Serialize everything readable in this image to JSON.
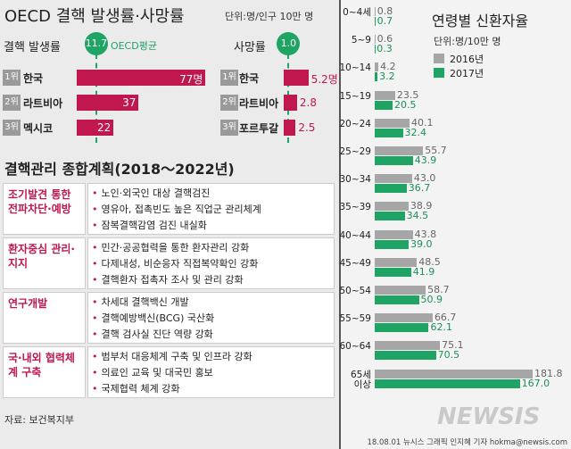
{
  "title": "OECD 결핵 발생률·사망률",
  "unit": "단위:명/인구 10만 명",
  "chart_data": [
    {
      "type": "bar",
      "title": "결핵 발생률",
      "ranks": [
        "1위",
        "2위",
        "3위"
      ],
      "categories": [
        "한국",
        "라트비아",
        "멕시코"
      ],
      "values": [
        77,
        37,
        22
      ],
      "value_labels": [
        "77명",
        "37",
        "22"
      ],
      "value_label_position": "inside",
      "color": "#c0174e",
      "reference": {
        "value": 11.7,
        "name": "OECD평균"
      },
      "reference_color": "#1fa463",
      "xlim": [
        0,
        80
      ]
    },
    {
      "type": "bar",
      "title": "사망률",
      "ranks": [
        "1위",
        "2위",
        "3위"
      ],
      "categories": [
        "한국",
        "라트비아",
        "포르투갈"
      ],
      "values": [
        5.2,
        2.8,
        2.5
      ],
      "value_labels": [
        "5.2명",
        "2.8",
        "2.5"
      ],
      "value_label_position": "outside",
      "color": "#c0174e",
      "reference": {
        "value": {
          "value": 1,
          "label": "1.0"
        }
      },
      "reference_color": "#1fa463",
      "xlim": [
        0,
        6
      ]
    },
    {
      "type": "grouped-bar",
      "title": "연령별 신환자율",
      "unit": "단위:명/10만 명",
      "categories": [
        "0~4세",
        "5~9",
        "10~14",
        "15~19",
        "20~24",
        "25~29",
        "30~34",
        "35~39",
        "40~44",
        "45~49",
        "50~54",
        "55~59",
        "60~64",
        "65세\n이상"
      ],
      "series": [
        {
          "name": "2016년",
          "color": "#a6a6a6",
          "label_color": "#666666",
          "values": [
            0.8,
            0.6,
            4.2,
            23.5,
            40.1,
            55.7,
            43.0,
            38.9,
            43.8,
            48.5,
            58.7,
            66.7,
            75.1,
            181.8
          ],
          "value_labels": [
            "0.8",
            "0.6",
            "4.2",
            "23.5",
            "40.1",
            "55.7",
            "43.0",
            "38.9",
            "43.8",
            "48.5",
            "58.7",
            "66.7",
            "75.1",
            "181.8"
          ]
        },
        {
          "name": "2017년",
          "color": "#1fa463",
          "label_color": "#1a8f55",
          "values": [
            0.7,
            0.3,
            3.2,
            20.5,
            32.4,
            43.9,
            36.7,
            34.5,
            39.0,
            41.9,
            50.9,
            62.1,
            70.5,
            167.0
          ],
          "value_labels": [
            "0.7",
            "0.3",
            "3.2",
            "20.5",
            "32.4",
            "43.9",
            "36.7",
            "34.5",
            "39.0",
            "41.9",
            "50.9",
            "62.1",
            "70.5",
            "167.0"
          ]
        }
      ],
      "xlim": [
        0,
        190
      ]
    }
  ],
  "plan": {
    "title": "결핵관리 종합계획(2018～2022년)",
    "rows": [
      {
        "label": "조기발견 통한 전파차단·예방",
        "items": [
          "노인·외국인 대상 결핵검진",
          "영유아, 접촉빈도 높은 직업군 관리체계",
          "잠복결핵감염 검진 내실화"
        ]
      },
      {
        "label": "환자중심 관리·지지",
        "items": [
          "민간·공공협력을 통한 환자관리 강화",
          "다제내성, 비순응자 직접복약확인 강화",
          "결핵환자 접촉자 조사 및 관리 강화"
        ]
      },
      {
        "label": "연구개발",
        "items": [
          "차세대 결핵백신 개발",
          "결핵예방백신(BCG) 국산화",
          "결핵 검사실 진단 역량 강화"
        ]
      },
      {
        "label": "국·내외 협력체계 구축",
        "items": [
          "범부처 대응체계 구축 및 인프라 강화",
          "의료인 교육 및 대국민 홍보",
          "국제협력 체계 강화"
        ]
      }
    ]
  },
  "source": "자료: 보건복지부",
  "watermark": "NEWSIS",
  "credit": "18.08.01 뉴시스 그래픽 인지혜 기자 hokma@newsis.com"
}
